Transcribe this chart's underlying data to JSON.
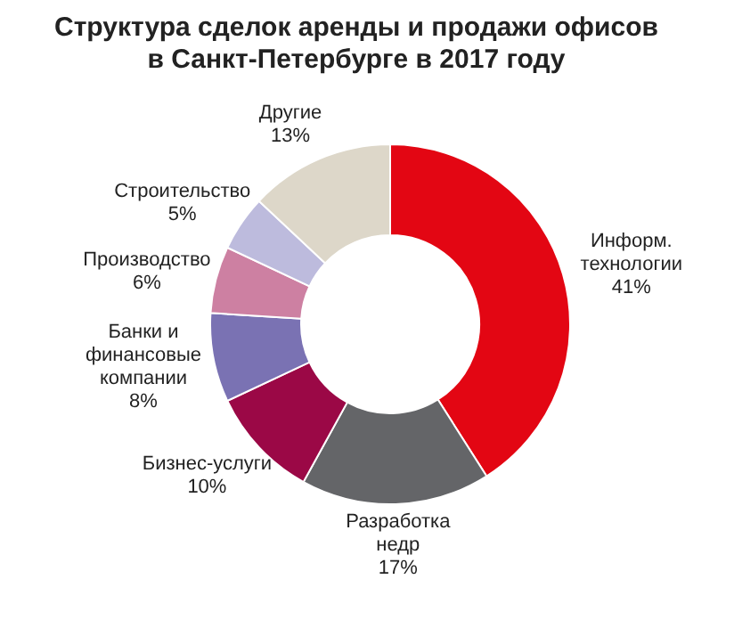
{
  "chart_data": {
    "type": "donut",
    "title": "Структура сделок аренды и продажи офисов в Санкт-Петербурге в 2017 году",
    "categories": [
      "Информ. технологии",
      "Разработка недр",
      "Бизнес-услуги",
      "Банки и финансовые компании",
      "Производство",
      "Строительство",
      "Другие"
    ],
    "values": [
      41,
      17,
      10,
      8,
      6,
      5,
      13
    ],
    "value_labels": [
      "41%",
      "17%",
      "10%",
      "8%",
      "6%",
      "5%",
      "13%"
    ],
    "colors": [
      "#e30613",
      "#646568",
      "#9b0846",
      "#7a72b3",
      "#cd80a2",
      "#bdbbdd",
      "#ddd7c9"
    ]
  }
}
